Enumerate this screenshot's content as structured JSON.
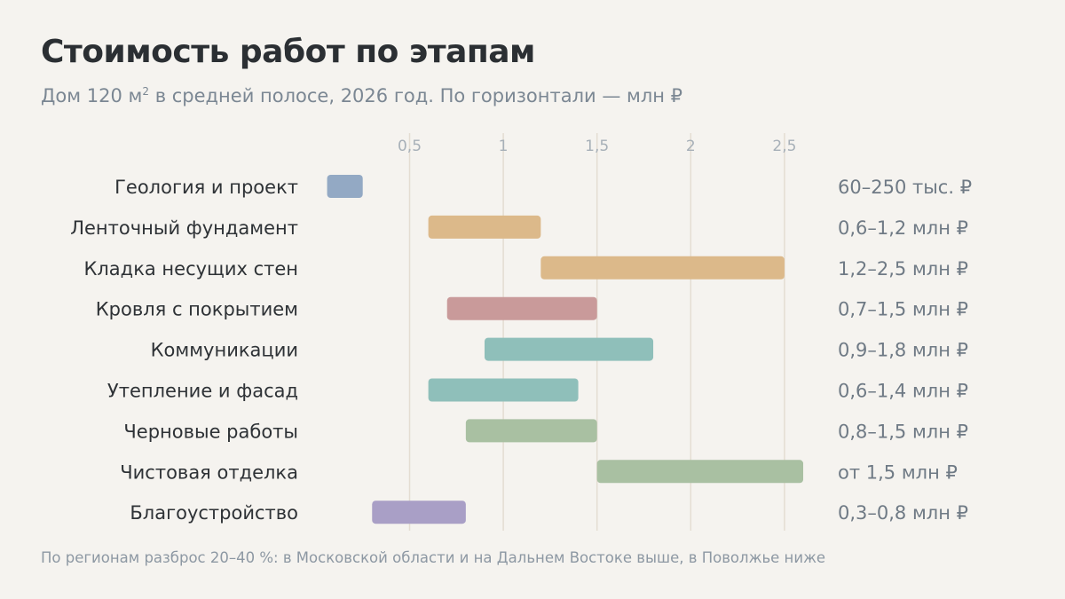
{
  "title": "Стоимость работ по этапам",
  "subtitle_before": "Дом 120 м",
  "subtitle_sup": "2",
  "subtitle_after": " в средней полосе, 2026 год. По горизонтали — млн ₽",
  "footnote": "По регионам разброс 20–40 %: в Московской области и на Дальнем Востоке выше, в Поволжье ниже",
  "chart_data": {
    "type": "bar",
    "orientation": "horizontal-range",
    "xlim": [
      0.06,
      2.6
    ],
    "x_ticks": [
      0.5,
      1,
      1.5,
      2,
      2.5
    ],
    "x_tick_labels": [
      "0,5",
      "1",
      "1,5",
      "2",
      "2,5"
    ],
    "grid": true,
    "categories": [
      "Геология и проект",
      "Ленточный фундамент",
      "Кладка несущих стен",
      "Кровля с покрытием",
      "Коммуникации",
      "Утепление и фасад",
      "Черновые работы",
      "Чистовая отделка",
      "Благоустройство"
    ],
    "ranges": [
      [
        0.06,
        0.25
      ],
      [
        0.6,
        1.2
      ],
      [
        1.2,
        2.5
      ],
      [
        0.7,
        1.5
      ],
      [
        0.9,
        1.8
      ],
      [
        0.6,
        1.4
      ],
      [
        0.8,
        1.5
      ],
      [
        1.5,
        2.6
      ],
      [
        0.3,
        0.8
      ]
    ],
    "range_labels": [
      "60–250 тыс. ₽",
      "0,6–1,2 млн ₽",
      "1,2–2,5 млн ₽",
      "0,7–1,5 млн ₽",
      "0,9–1,8 млн ₽",
      "0,6–1,4 млн ₽",
      "0,8–1,5 млн ₽",
      "от 1,5 млн ₽",
      "0,3–0,8 млн ₽"
    ],
    "colors": [
      "#93a9c4",
      "#dcb98a",
      "#dcb98a",
      "#c99a9a",
      "#8fbfba",
      "#8fbfba",
      "#a9c0a2",
      "#a9c0a2",
      "#a99fc6"
    ]
  }
}
